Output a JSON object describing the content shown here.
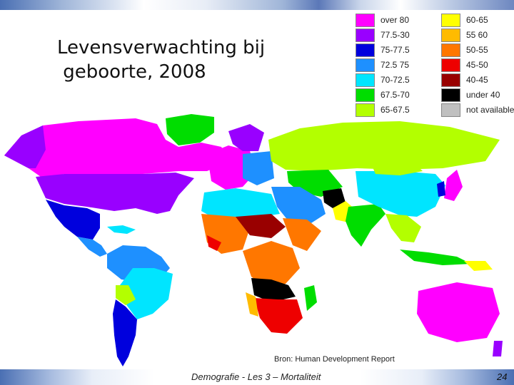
{
  "slide": {
    "title": "Levensverwachting bij\n geboorte, 2008",
    "source": "Bron: Human Development Report",
    "footer": "Demografie - Les 3 – Mortaliteit",
    "page_number": "24"
  },
  "legend": {
    "left_column": [
      {
        "label": "over 80",
        "color": "#ff00ff"
      },
      {
        "label": "77.5-30",
        "color": "#9900ff"
      },
      {
        "label": "75-77.5",
        "color": "#0000dd"
      },
      {
        "label": "72.5 75",
        "color": "#1e90ff"
      },
      {
        "label": "70-72.5",
        "color": "#00e5ff"
      },
      {
        "label": "67.5-70",
        "color": "#00dd00"
      },
      {
        "label": "65-67.5",
        "color": "#b3ff00"
      }
    ],
    "right_column": [
      {
        "label": "60-65",
        "color": "#ffff00"
      },
      {
        "label": "55 60",
        "color": "#ffbb00"
      },
      {
        "label": "50-55",
        "color": "#ff7700"
      },
      {
        "label": "45-50",
        "color": "#ee0000"
      },
      {
        "label": "40-45",
        "color": "#990000"
      },
      {
        "label": "under 40",
        "color": "#000000"
      },
      {
        "label": "not available",
        "color": "#c0c0c0"
      }
    ]
  }
}
